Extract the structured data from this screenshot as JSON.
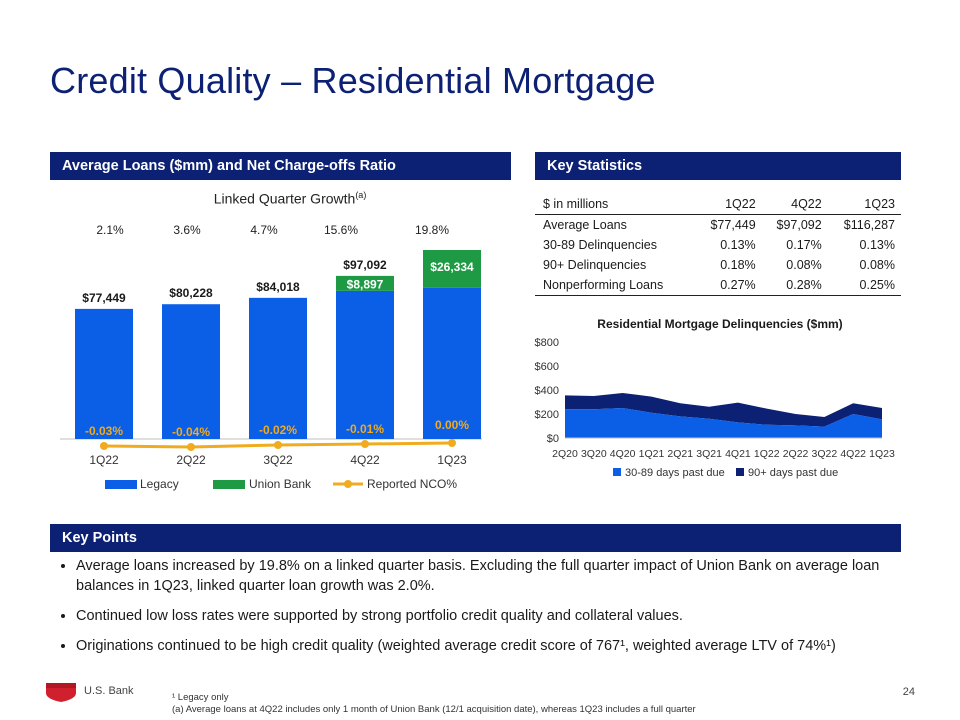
{
  "page": {
    "title": "Credit Quality – Residential Mortgage",
    "page_number": "24",
    "logo_text": "U.S. Bank"
  },
  "left_panel": {
    "header": "Average Loans ($mm) and Net Charge-offs Ratio",
    "subtitle": "Linked Quarter Growth",
    "subtitle_sup": "(a)",
    "growth": [
      "2.1%",
      "3.6%",
      "4.7%",
      "15.6%",
      "19.8%"
    ]
  },
  "right_panel": {
    "header": "Key Statistics",
    "table": {
      "columns": [
        "$ in millions",
        "1Q22",
        "4Q22",
        "1Q23"
      ],
      "rows": [
        [
          "Average Loans",
          "$77,449",
          "$97,092",
          "$116,287"
        ],
        [
          "30-89 Delinquencies",
          "0.13%",
          "0.17%",
          "0.13%"
        ],
        [
          "90+ Delinquencies",
          "0.18%",
          "0.08%",
          "0.08%"
        ],
        [
          "Nonperforming Loans",
          "0.27%",
          "0.28%",
          "0.25%"
        ]
      ]
    }
  },
  "key_points": {
    "header": "Key Points",
    "items": [
      "Average loans increased by 19.8% on a linked quarter basis. Excluding the full quarter impact of Union Bank on average loan balances in 1Q23, linked quarter loan growth was 2.0%.",
      "Continued low loss rates were supported by strong portfolio credit quality and collateral values.",
      "Originations continued to be high credit quality (weighted average credit score of 767¹, weighted average LTV of 74%¹)"
    ]
  },
  "footnotes": {
    "note1": "¹ Legacy only",
    "note2": "(a) Average loans at 4Q22 includes only 1 month of Union Bank (12/1 acquisition date), whereas 1Q23 includes a full  quarter"
  },
  "colors": {
    "navy": "#0c2074",
    "legacy": "#0b5ee6",
    "union": "#1e9a44",
    "nco": "#f0ab1e",
    "delinq_30_89": "#0b5ee6",
    "delinq_90": "#0c2074"
  },
  "chart_data": [
    {
      "type": "bar",
      "title": "",
      "categories": [
        "1Q22",
        "2Q22",
        "3Q22",
        "4Q22",
        "1Q23"
      ],
      "series": [
        {
          "name": "Legacy",
          "values": [
            77449,
            80228,
            84018,
            88195,
            89953
          ],
          "stacked": true
        },
        {
          "name": "Union Bank",
          "values": [
            0,
            0,
            0,
            8897,
            26334
          ],
          "stacked": true,
          "labels": [
            "",
            "",
            "",
            "$8,897",
            "$26,334"
          ]
        },
        {
          "name": "Reported NCO%",
          "type": "line",
          "values": [
            -0.03,
            -0.04,
            -0.02,
            -0.01,
            0.0
          ],
          "labels": [
            "-0.03%",
            "-0.04%",
            "-0.02%",
            "-0.01%",
            "0.00%"
          ]
        }
      ],
      "total_labels": [
        "$77,449",
        "$80,228",
        "$84,018",
        "$97,092",
        "$116,287"
      ],
      "legend": [
        "Legacy",
        "Union Bank",
        "Reported NCO%"
      ],
      "ylim": [
        0,
        120000
      ]
    },
    {
      "type": "area",
      "title": "Residential Mortgage Delinquencies ($mm)",
      "categories": [
        "2Q20",
        "3Q20",
        "4Q20",
        "1Q21",
        "2Q21",
        "3Q21",
        "4Q21",
        "1Q22",
        "2Q22",
        "3Q22",
        "4Q22",
        "1Q23"
      ],
      "series": [
        {
          "name": "30-89 days past due",
          "values": [
            240,
            240,
            250,
            210,
            180,
            160,
            130,
            110,
            105,
            95,
            200,
            155
          ]
        },
        {
          "name": "90+ days past due",
          "values": [
            115,
            110,
            125,
            135,
            110,
            100,
            165,
            135,
            95,
            80,
            90,
            95
          ]
        }
      ],
      "yticks": [
        "$800",
        "$600",
        "$400",
        "$200",
        "$0"
      ],
      "ylim": [
        0,
        800
      ],
      "legend": [
        "30-89 days past due",
        "90+ days past due"
      ]
    }
  ]
}
